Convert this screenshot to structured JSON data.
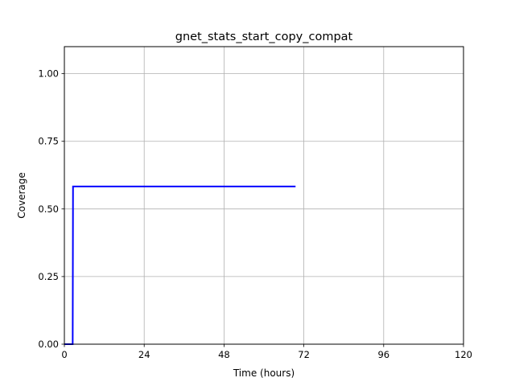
{
  "chart_data": {
    "type": "line",
    "title": "gnet_stats_start_copy_compat",
    "xlabel": "Time (hours)",
    "ylabel": "Coverage",
    "xlim": [
      0,
      120
    ],
    "ylim": [
      0,
      1.1
    ],
    "xticks": [
      0,
      24,
      48,
      72,
      96,
      120
    ],
    "xtick_labels": [
      "0",
      "24",
      "48",
      "72",
      "96",
      "120"
    ],
    "yticks": [
      0.0,
      0.25,
      0.5,
      0.75,
      1.0
    ],
    "ytick_labels": [
      "0.00",
      "0.25",
      "0.50",
      "0.75",
      "1.00"
    ],
    "grid": true,
    "series": [
      {
        "color": "#0000ff",
        "x": [
          0,
          2.5,
          2.6,
          69.5
        ],
        "y": [
          0,
          0,
          0.583,
          0.583
        ]
      }
    ]
  }
}
